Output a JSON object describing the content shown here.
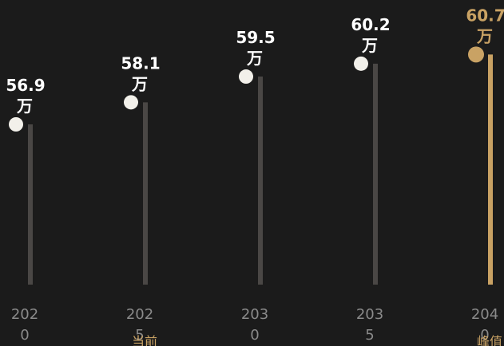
{
  "chart_data": {
    "type": "scatter",
    "title": "",
    "xlabel": "",
    "ylabel": "",
    "unit": "万",
    "categories": [
      "2020",
      "2025",
      "2030",
      "2035",
      "2040"
    ],
    "values": [
      56.9,
      58.1,
      59.5,
      60.2,
      60.7
    ],
    "value_labels": [
      "56.9",
      "58.1",
      "59.5",
      "60.2",
      "60.7"
    ],
    "annotations": [
      {
        "category": "2025",
        "text": "当前"
      },
      {
        "category": "2040",
        "text": "峰值"
      }
    ],
    "highlight_index": 4,
    "grid": false,
    "legend": "none"
  },
  "colors": {
    "background": "#1b1b1b",
    "stem": "#4a4745",
    "point": "#f2f0ea",
    "highlight": "#c9a264",
    "label": "#ffffff",
    "axis_label": "#8a8a8a"
  }
}
